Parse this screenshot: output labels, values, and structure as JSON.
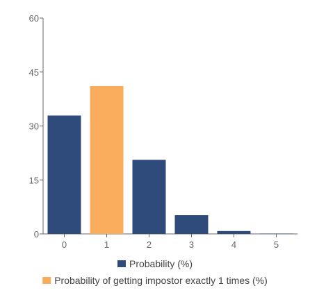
{
  "chart_data": {
    "type": "bar",
    "categories": [
      "0",
      "1",
      "2",
      "3",
      "4",
      "5"
    ],
    "series": [
      {
        "name": "Probability (%)",
        "color": "#2f4b7c",
        "values": [
          32.9,
          null,
          20.6,
          5.2,
          0.8,
          0.1
        ]
      },
      {
        "name": "Probability of getting impostor exactly 1 times (%)",
        "color": "#f9ad5c",
        "values": [
          null,
          41.1,
          null,
          null,
          null,
          null
        ]
      }
    ],
    "y_ticks": [
      "0",
      "15",
      "30",
      "45",
      "60"
    ],
    "ylim": [
      0,
      60
    ],
    "grid": false,
    "legend_position": "bottom",
    "title": "",
    "xlabel": "",
    "ylabel": ""
  }
}
